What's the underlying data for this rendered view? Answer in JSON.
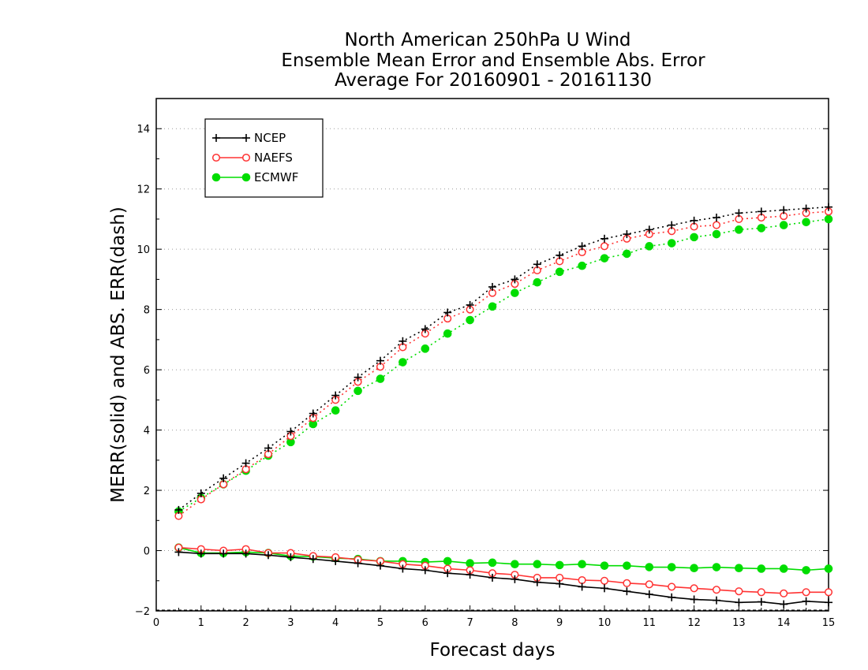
{
  "chart_data": {
    "type": "line",
    "title_lines": [
      "North American 250hPa U Wind",
      "Ensemble Mean Error and Ensemble Abs. Error",
      "Average For 20160901 - 20161130"
    ],
    "xlabel": "Forecast days",
    "ylabel": "MERR(solid) and ABS. ERR(dash)",
    "xlim": [
      0,
      15
    ],
    "ylim": [
      -2,
      15
    ],
    "x_ticks": [
      "0",
      "1",
      "2",
      "3",
      "4",
      "5",
      "6",
      "7",
      "8",
      "9",
      "10",
      "11",
      "12",
      "13",
      "14",
      "15"
    ],
    "y_ticks": [
      "−2",
      "0",
      "2",
      "4",
      "6",
      "8",
      "10",
      "12",
      "14"
    ],
    "grid": "horizontal dotted",
    "legend_position": "top-left",
    "x": [
      0.5,
      1,
      1.5,
      2,
      2.5,
      3,
      3.5,
      4,
      4.5,
      5,
      5.5,
      6,
      6.5,
      7,
      7.5,
      8,
      8.5,
      9,
      9.5,
      10,
      10.5,
      11,
      11.5,
      12,
      12.5,
      13,
      13.5,
      14,
      14.5,
      15
    ],
    "series": [
      {
        "name": "NCEP",
        "color": "#000000",
        "marker": "plus",
        "abs_err": [
          1.35,
          1.9,
          2.4,
          2.9,
          3.4,
          3.95,
          4.55,
          5.15,
          5.75,
          6.3,
          6.95,
          7.35,
          7.9,
          8.15,
          8.75,
          9.0,
          9.5,
          9.8,
          10.1,
          10.35,
          10.5,
          10.65,
          10.8,
          10.95,
          11.05,
          11.2,
          11.25,
          11.3,
          11.35,
          11.4
        ],
        "mean_err": [
          -0.05,
          -0.1,
          -0.1,
          -0.1,
          -0.15,
          -0.22,
          -0.28,
          -0.35,
          -0.42,
          -0.5,
          -0.6,
          -0.65,
          -0.75,
          -0.8,
          -0.9,
          -0.95,
          -1.05,
          -1.1,
          -1.2,
          -1.25,
          -1.35,
          -1.45,
          -1.55,
          -1.62,
          -1.65,
          -1.72,
          -1.7,
          -1.78,
          -1.68,
          -1.72
        ]
      },
      {
        "name": "NAEFS",
        "color": "#ff3333",
        "marker": "open-circle",
        "abs_err": [
          1.15,
          1.7,
          2.2,
          2.7,
          3.2,
          3.8,
          4.4,
          5.0,
          5.6,
          6.1,
          6.75,
          7.2,
          7.7,
          8.0,
          8.55,
          8.85,
          9.3,
          9.6,
          9.9,
          10.1,
          10.35,
          10.5,
          10.6,
          10.75,
          10.8,
          11.0,
          11.05,
          11.1,
          11.2,
          11.25
        ],
        "mean_err": [
          0.1,
          0.05,
          0.0,
          0.05,
          -0.08,
          -0.08,
          -0.18,
          -0.22,
          -0.3,
          -0.35,
          -0.45,
          -0.5,
          -0.6,
          -0.65,
          -0.75,
          -0.8,
          -0.9,
          -0.9,
          -0.98,
          -1.0,
          -1.08,
          -1.12,
          -1.2,
          -1.25,
          -1.3,
          -1.35,
          -1.38,
          -1.42,
          -1.38,
          -1.38
        ]
      },
      {
        "name": "ECMWF",
        "color": "#00dd00",
        "marker": "filled-circle",
        "abs_err": [
          1.3,
          1.75,
          2.2,
          2.65,
          3.15,
          3.6,
          4.2,
          4.65,
          5.3,
          5.7,
          6.25,
          6.7,
          7.2,
          7.65,
          8.1,
          8.55,
          8.9,
          9.25,
          9.45,
          9.7,
          9.85,
          10.1,
          10.2,
          10.4,
          10.5,
          10.65,
          10.7,
          10.8,
          10.9,
          11.0
        ],
        "mean_err": [
          0.1,
          -0.08,
          -0.08,
          -0.05,
          -0.08,
          -0.18,
          -0.2,
          -0.25,
          -0.28,
          -0.35,
          -0.35,
          -0.38,
          -0.35,
          -0.42,
          -0.4,
          -0.45,
          -0.45,
          -0.48,
          -0.45,
          -0.5,
          -0.5,
          -0.55,
          -0.55,
          -0.58,
          -0.55,
          -0.58,
          -0.6,
          -0.6,
          -0.65,
          -0.6
        ]
      }
    ]
  }
}
